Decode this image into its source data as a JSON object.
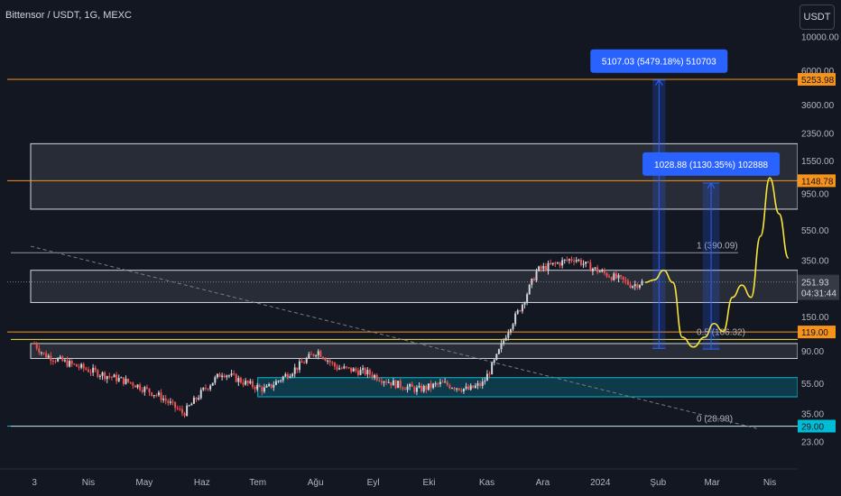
{
  "header": {
    "title": "Bittensor / USDT, 1G, MEXC",
    "currency_button": "USDT"
  },
  "colors": {
    "background": "#131722",
    "axis_text": "#b2b5be",
    "orange_line": "#f7931a",
    "yellow_line": "#f5e23a",
    "cyan_zone": "#00bcd4",
    "measure_blue": "#2962ff",
    "candle_up": "#d1d4dc",
    "candle_down": "#ef5350"
  },
  "chart_data": {
    "type": "candlestick",
    "title": "Bittensor / USDT, 1G, MEXC",
    "y_scale": "log",
    "ylim": [
      20,
      11500
    ],
    "x_tick_labels": [
      "3",
      "Nis",
      "May",
      "Haz",
      "Tem",
      "Ağu",
      "Eyl",
      "Eki",
      "Kas",
      "Ara",
      "2024",
      "Şub",
      "Mar",
      "Nis"
    ],
    "y_tick_labels": [
      "10000.00",
      "6000.00",
      "3600.00",
      "2350.00",
      "1550.00",
      "950.00",
      "550.00",
      "350.00",
      "150.00",
      "90.00",
      "55.00",
      "35.00",
      "23.00"
    ],
    "y_tick_values": [
      10000,
      6000,
      3600,
      2350,
      1550,
      950,
      550,
      350,
      150,
      90,
      55,
      35,
      23
    ],
    "price_path": [
      {
        "date": "2023-03-03",
        "price": 100
      },
      {
        "date": "2023-03-08",
        "price": 85
      },
      {
        "date": "2023-03-20",
        "price": 75
      },
      {
        "date": "2023-04-05",
        "price": 65
      },
      {
        "date": "2023-04-25",
        "price": 55
      },
      {
        "date": "2023-05-10",
        "price": 45
      },
      {
        "date": "2023-05-22",
        "price": 35
      },
      {
        "date": "2023-06-02",
        "price": 50
      },
      {
        "date": "2023-06-12",
        "price": 65
      },
      {
        "date": "2023-06-25",
        "price": 55
      },
      {
        "date": "2023-07-05",
        "price": 50
      },
      {
        "date": "2023-07-22",
        "price": 70
      },
      {
        "date": "2023-08-02",
        "price": 90
      },
      {
        "date": "2023-08-12",
        "price": 70
      },
      {
        "date": "2023-08-28",
        "price": 65
      },
      {
        "date": "2023-09-12",
        "price": 55
      },
      {
        "date": "2023-09-25",
        "price": 50
      },
      {
        "date": "2023-10-08",
        "price": 55
      },
      {
        "date": "2023-10-22",
        "price": 50
      },
      {
        "date": "2023-10-30",
        "price": 55
      },
      {
        "date": "2023-11-06",
        "price": 80
      },
      {
        "date": "2023-11-12",
        "price": 120
      },
      {
        "date": "2023-11-20",
        "price": 180
      },
      {
        "date": "2023-11-28",
        "price": 300
      },
      {
        "date": "2023-12-08",
        "price": 330
      },
      {
        "date": "2023-12-18",
        "price": 360
      },
      {
        "date": "2023-12-25",
        "price": 320
      },
      {
        "date": "2024-01-02",
        "price": 290
      },
      {
        "date": "2024-01-12",
        "price": 260
      },
      {
        "date": "2024-01-18",
        "price": 240
      },
      {
        "date": "2024-01-24",
        "price": 251.93
      }
    ],
    "last_price": {
      "value": "251.93",
      "countdown": "04:31:44"
    },
    "horizontal_levels": [
      {
        "value": 5253.98,
        "label": "5253.98",
        "color": "#f7931a"
      },
      {
        "value": 1148.78,
        "label": "1148.78",
        "color": "#f7931a"
      },
      {
        "value": 119.0,
        "label": "119.00",
        "color": "#f7931a"
      },
      {
        "value": 29.0,
        "label": "29.00",
        "color": "#00bcd4"
      }
    ],
    "zones": [
      {
        "from_date": "2023-03-01",
        "to_date": "2024-04-16",
        "low": 750,
        "high": 2000,
        "color": "#787b86"
      },
      {
        "from_date": "2023-03-01",
        "to_date": "2024-04-16",
        "low": 185,
        "high": 300,
        "color": "#787b86"
      },
      {
        "from_date": "2023-03-01",
        "to_date": "2024-04-16",
        "low": 80,
        "high": 100,
        "color": "#787b86"
      },
      {
        "from_date": "2023-07-01",
        "to_date": "2024-04-16",
        "low": 45,
        "high": 60,
        "color": "#00bcd4"
      }
    ],
    "fib_levels": [
      {
        "value": 390.09,
        "label": "1 (390.09)",
        "from_date": "2023-03-01",
        "to_date": "2024-03-15"
      },
      {
        "value": 106.32,
        "label": "0.5 (106.32)",
        "from_date": "2023-03-01",
        "to_date": "2024-04-16"
      },
      {
        "value": 28.98,
        "label": "0 (28.98)",
        "from_date": "2023-03-01",
        "to_date": "2024-04-16"
      }
    ],
    "measure_tools": [
      {
        "label": "5107.03 (5479.18%) 510703",
        "from_date": "2024-01-29",
        "to_date": "2024-02-05",
        "low": 93,
        "high": 5200
      },
      {
        "label": "1028.88 (1130.35%) 102888",
        "from_date": "2024-02-25",
        "to_date": "2024-03-05",
        "low": 92,
        "high": 1110
      }
    ],
    "projection": [
      {
        "date": "2024-01-25",
        "price": 250
      },
      {
        "date": "2024-01-30",
        "price": 260
      },
      {
        "date": "2024-02-04",
        "price": 300
      },
      {
        "date": "2024-02-09",
        "price": 250
      },
      {
        "date": "2024-02-14",
        "price": 110
      },
      {
        "date": "2024-02-20",
        "price": 95
      },
      {
        "date": "2024-02-26",
        "price": 110
      },
      {
        "date": "2024-03-02",
        "price": 135
      },
      {
        "date": "2024-03-07",
        "price": 120
      },
      {
        "date": "2024-03-12",
        "price": 200
      },
      {
        "date": "2024-03-17",
        "price": 240
      },
      {
        "date": "2024-03-22",
        "price": 200
      },
      {
        "date": "2024-03-27",
        "price": 500
      },
      {
        "date": "2024-04-01",
        "price": 1200
      },
      {
        "date": "2024-04-06",
        "price": 700
      },
      {
        "date": "2024-04-11",
        "price": 360
      }
    ],
    "trendline": [
      {
        "date": "2023-03-01",
        "price": 430
      },
      {
        "date": "2024-03-25",
        "price": 28
      }
    ]
  }
}
